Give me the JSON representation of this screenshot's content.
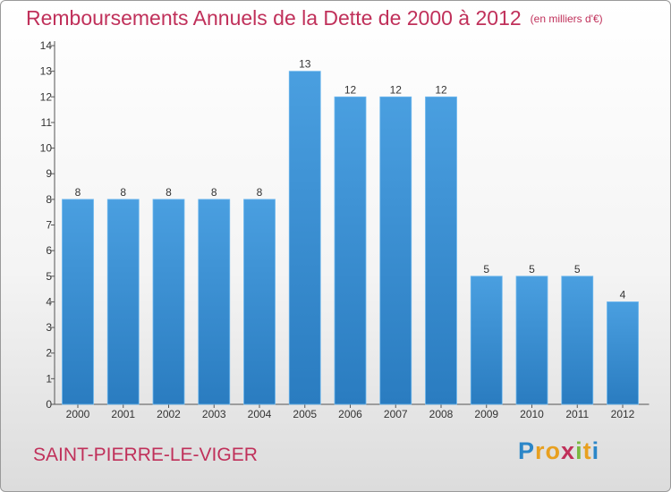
{
  "chart_data": {
    "type": "bar",
    "title": "Remboursements Annuels de la Dette de 2000 à 2012",
    "unit": "(en milliers d'€)",
    "categories": [
      "2000",
      "2001",
      "2002",
      "2003",
      "2004",
      "2005",
      "2006",
      "2007",
      "2008",
      "2009",
      "2010",
      "2011",
      "2012"
    ],
    "values": [
      8,
      8,
      8,
      8,
      8,
      13,
      12,
      12,
      12,
      5,
      5,
      5,
      4
    ],
    "ylim": [
      0,
      14
    ],
    "yticks": [
      0,
      1,
      2,
      3,
      4,
      5,
      6,
      7,
      8,
      9,
      10,
      11,
      12,
      13,
      14
    ],
    "grid": false,
    "bar_color": "#4a9fe0",
    "bar_color_dark": "#2a7cc0"
  },
  "footer": {
    "commune": "SAINT-PIERRE-LE-VIGER",
    "logo_letters": [
      "P",
      "r",
      "o",
      "x",
      "i",
      "t",
      "i"
    ],
    "logo_colors": [
      "#2b86c8",
      "#e8a020",
      "#e8a020",
      "#c0305a",
      "#7ab840",
      "#e8a020",
      "#2b86c8"
    ]
  }
}
